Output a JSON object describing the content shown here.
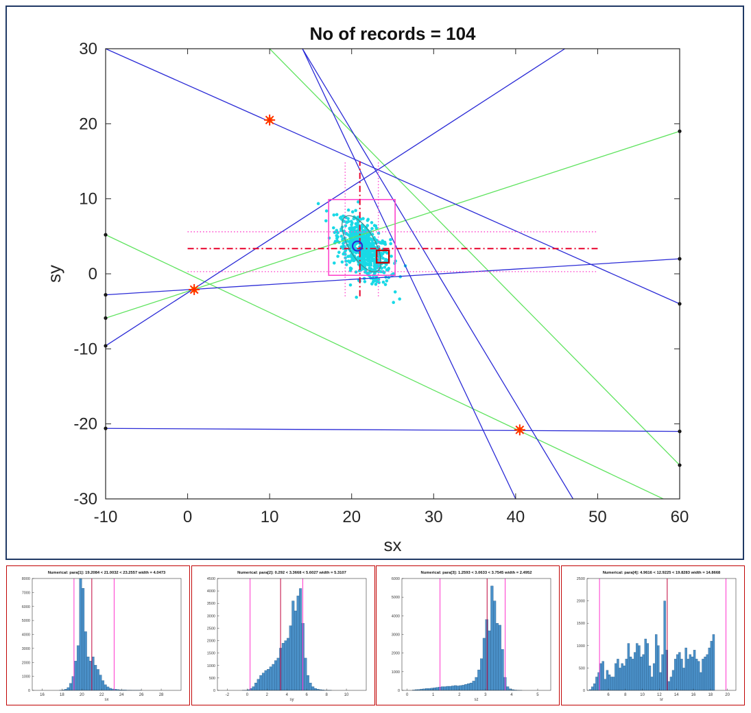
{
  "main_plot": {
    "title": "No of records = 104",
    "xlabel": "sx",
    "ylabel": "sy",
    "colors": {
      "blue_line": "#2a2ad6",
      "green_line": "#5ee35e",
      "cloud": "#19d9e6",
      "box": "#ff44cc",
      "crosshair": "#e8002a",
      "marker": "#ff2a00",
      "marker_fill": "#ffd400"
    }
  },
  "chart_data": [
    {
      "type": "scatter",
      "title": "No of records = 104",
      "xlabel": "sx",
      "ylabel": "sy",
      "xlim": [
        -10,
        60
      ],
      "ylim": [
        -30,
        30
      ],
      "xticks": [
        -10,
        0,
        10,
        20,
        30,
        40,
        50,
        60
      ],
      "yticks": [
        -30,
        -20,
        -10,
        0,
        10,
        20,
        30
      ],
      "grid": false,
      "blue_lines": [
        [
          [
            -10,
            30
          ],
          [
            60,
            -4
          ]
        ],
        [
          [
            -10,
            -9.6
          ],
          [
            46,
            30
          ]
        ],
        [
          [
            -10,
            -2.8
          ],
          [
            60,
            2
          ]
        ],
        [
          [
            -10,
            -20.6
          ],
          [
            60,
            -21
          ]
        ],
        [
          [
            14,
            30
          ],
          [
            47,
            -30
          ]
        ],
        [
          [
            14,
            30
          ],
          [
            40,
            -30
          ]
        ]
      ],
      "green_lines": [
        [
          [
            -10,
            5.2
          ],
          [
            58,
            -30
          ]
        ],
        [
          [
            -10,
            -5.9
          ],
          [
            60,
            19
          ]
        ],
        [
          [
            10,
            30
          ],
          [
            60,
            -25.5
          ]
        ]
      ],
      "endpoint_dots": [
        [
          -10,
          5.2
        ],
        [
          -10,
          -2.8
        ],
        [
          -10,
          -5.9
        ],
        [
          -10,
          -9.6
        ],
        [
          -10,
          -20.6
        ],
        [
          60,
          19
        ],
        [
          60,
          2
        ],
        [
          60,
          -4
        ],
        [
          60,
          -21
        ],
        [
          60,
          -25.5
        ]
      ],
      "intersection_markers": [
        [
          10,
          20.5
        ],
        [
          0.8,
          -2.1
        ],
        [
          40.5,
          -20.8
        ]
      ],
      "cloud": {
        "center": [
          21.5,
          3.3
        ],
        "spread": [
          1.6,
          2.1
        ],
        "count": 650
      },
      "box": {
        "x": [
          17.2,
          25.3
        ],
        "y": [
          -0.2,
          9.9
        ]
      },
      "crosshair": {
        "x": 21.0032,
        "y": 3.3668
      },
      "dotted_vertical": [
        19.2084,
        23.2557
      ],
      "dotted_horizontal": [
        0.292,
        5.6027
      ],
      "crosshair_span": {
        "x": [
          0,
          50
        ],
        "y": [
          -3,
          15
        ]
      },
      "ellipse": {
        "center": [
          21.2,
          4.0
        ],
        "rx": 1.6,
        "ry": 4.2,
        "rotation_deg": 30
      },
      "circle_marker": [
        20.7,
        3.7
      ],
      "square_marker": [
        23.8,
        2.3
      ]
    },
    {
      "type": "bar",
      "title": "Numerical: para[1]: 19.2084 < 21.0032 < 23.2557  width = 4.0473",
      "xlabel": "sx",
      "xlim": [
        15,
        30
      ],
      "ylim": [
        0,
        8000
      ],
      "xticks": [
        16,
        18,
        20,
        22,
        24,
        26,
        28
      ],
      "yticks": [
        0,
        1000,
        2000,
        3000,
        4000,
        5000,
        6000,
        7000,
        8000
      ],
      "bin_start": 15,
      "bin_width": 0.25,
      "values": [
        0,
        0,
        0,
        0,
        0,
        0,
        0,
        0,
        0,
        0,
        0,
        10,
        30,
        80,
        200,
        500,
        1000,
        2100,
        3200,
        8000,
        7300,
        4200,
        2400,
        2100,
        2400,
        1800,
        1500,
        1100,
        700,
        400,
        250,
        150,
        100,
        80,
        60,
        40,
        30,
        30,
        20,
        20,
        10,
        10,
        10,
        10,
        0,
        0,
        0,
        0,
        0,
        0,
        0,
        0,
        0,
        0,
        0,
        0,
        0,
        0,
        0,
        0
      ],
      "lines": [
        19.2084,
        21.0032,
        23.2557
      ]
    },
    {
      "type": "bar",
      "title": "Numerical: para[2]: 0.292 < 3.3668 < 5.6027  width = 5.3107",
      "xlabel": "sy",
      "xlim": [
        -3,
        12
      ],
      "ylim": [
        0,
        4500
      ],
      "xticks": [
        -2,
        0,
        2,
        4,
        6,
        8,
        10
      ],
      "yticks": [
        0,
        500,
        1000,
        1500,
        2000,
        2500,
        3000,
        3500,
        4000,
        4500
      ],
      "bin_start": -3,
      "bin_width": 0.25,
      "values": [
        0,
        0,
        0,
        0,
        0,
        0,
        0,
        0,
        0,
        0,
        5,
        10,
        30,
        80,
        150,
        300,
        450,
        600,
        700,
        800,
        850,
        950,
        1050,
        1200,
        1300,
        1700,
        1900,
        2000,
        2100,
        2600,
        3600,
        3200,
        3800,
        4100,
        2700,
        1300,
        600,
        300,
        150,
        80,
        50,
        30,
        20,
        10,
        10,
        5,
        0,
        0,
        0,
        0,
        0,
        0,
        0,
        0,
        0,
        0,
        0,
        0,
        0,
        0
      ],
      "lines": [
        0.292,
        3.3668,
        5.6027
      ]
    },
    {
      "type": "bar",
      "title": "Numerical: para[3]: 1.2593 < 3.0633 < 3.7545  width = 2.4952",
      "xlabel": "sz",
      "xlim": [
        -0.2,
        5.5
      ],
      "ylim": [
        0,
        6000
      ],
      "xticks": [
        0,
        1,
        2,
        3,
        4,
        5
      ],
      "yticks": [
        0,
        1000,
        2000,
        3000,
        4000,
        5000,
        6000
      ],
      "bin_start": -0.2,
      "bin_width": 0.1,
      "values": [
        0,
        0,
        0,
        0,
        20,
        40,
        50,
        70,
        80,
        100,
        100,
        120,
        140,
        160,
        180,
        200,
        200,
        220,
        220,
        240,
        260,
        240,
        260,
        280,
        320,
        360,
        400,
        500,
        700,
        1100,
        1700,
        2800,
        3800,
        3200,
        5600,
        4800,
        3600,
        3500,
        2200,
        700,
        200,
        80,
        40,
        20,
        10,
        5,
        0,
        0,
        0,
        0,
        0,
        0,
        0,
        0,
        0,
        0,
        0
      ],
      "lines": [
        1.2593,
        3.0633,
        3.7545
      ]
    },
    {
      "type": "bar",
      "title": "Numerical: para[4]: 4.9616 < 12.9225 < 19.8283  width = 14.8668",
      "xlabel": "sr",
      "xlim": [
        3.5,
        21
      ],
      "ylim": [
        0,
        2500
      ],
      "xticks": [
        6,
        8,
        10,
        12,
        14,
        16,
        18,
        20
      ],
      "yticks": [
        0,
        500,
        1000,
        1500,
        2000,
        2500
      ],
      "bin_start": 3.5,
      "bin_width": 0.25,
      "values": [
        0,
        20,
        80,
        150,
        300,
        400,
        600,
        650,
        250,
        450,
        350,
        300,
        300,
        600,
        700,
        500,
        600,
        550,
        700,
        1050,
        750,
        700,
        850,
        1050,
        1000,
        750,
        800,
        1150,
        1050,
        550,
        300,
        600,
        1250,
        1000,
        400,
        800,
        2000,
        900,
        200,
        300,
        450,
        700,
        800,
        850,
        700,
        500,
        950,
        700,
        800,
        750,
        900,
        700,
        650,
        400,
        700,
        750,
        800,
        950,
        1100,
        1250
      ],
      "lines": [
        4.9616,
        12.9225,
        19.8283
      ]
    }
  ]
}
